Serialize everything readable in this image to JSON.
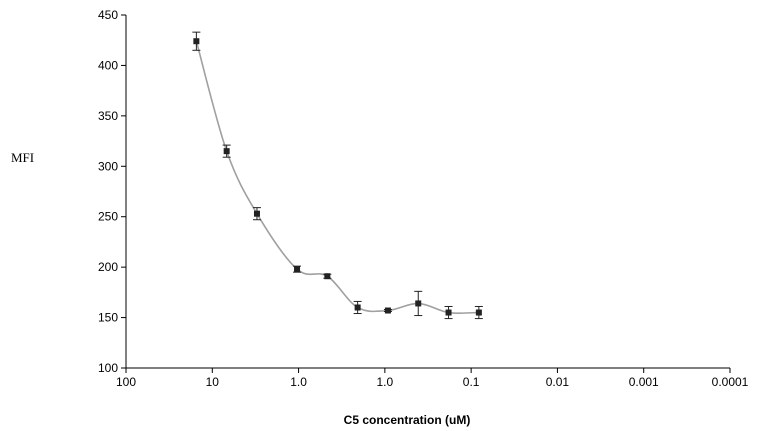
{
  "chart_data": {
    "type": "line",
    "title": "",
    "xlabel": "C5 concentration (uM)",
    "ylabel": "MFI",
    "x_scale": "log-reversed",
    "xlim": [
      100,
      0.0001
    ],
    "ylim": [
      100,
      450
    ],
    "x_ticks": [
      "100",
      "10",
      "1.0",
      "1.0",
      "0.1",
      "0.01",
      "0.001",
      "0.0001"
    ],
    "y_ticks": [
      "100",
      "150",
      "200",
      "250",
      "300",
      "350",
      "400",
      "450"
    ],
    "grid": false,
    "legend": "none",
    "colors": {
      "line": "#a0a0a0",
      "marker": "#222222",
      "axis": "#000000"
    },
    "series": [
      {
        "x": [
          20,
          10,
          5,
          2,
          1,
          0.5,
          0.25,
          0.125,
          0.0625,
          0.03125
        ],
        "y": [
          424,
          315,
          253,
          198,
          191,
          160,
          157,
          164,
          155,
          155
        ],
        "y_err": [
          9,
          6,
          6,
          3,
          2,
          6,
          1,
          12,
          6,
          6
        ]
      }
    ]
  }
}
